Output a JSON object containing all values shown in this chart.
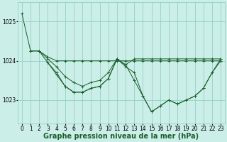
{
  "background_color": "#cceee8",
  "plot_bg_color": "#cceee8",
  "grid_color": "#88ccbb",
  "line_color": "#1a5e2a",
  "marker_color": "#1a5e2a",
  "xlabel": "Graphe pression niveau de la mer (hPa)",
  "xlabel_fontsize": 7,
  "ylim": [
    1022.4,
    1025.5
  ],
  "xlim": [
    -0.5,
    23.5
  ],
  "yticks": [
    1023,
    1024,
    1025
  ],
  "xticks": [
    0,
    1,
    2,
    3,
    4,
    5,
    6,
    7,
    8,
    9,
    10,
    11,
    12,
    13,
    14,
    15,
    16,
    17,
    18,
    19,
    20,
    21,
    22,
    23
  ],
  "tick_fontsize": 5.5,
  "series": [
    {
      "x": [
        0,
        1,
        2,
        3,
        4,
        5,
        6,
        7,
        8,
        9,
        10,
        11,
        12,
        13,
        14,
        15,
        16,
        17,
        18,
        19,
        20,
        21,
        22,
        23
      ],
      "y": [
        1025.2,
        1024.25,
        1024.25,
        1024.05,
        1023.85,
        1023.6,
        1023.45,
        1023.35,
        1023.45,
        1023.5,
        1023.7,
        1024.05,
        1023.85,
        1023.7,
        1023.1,
        1022.7,
        1022.85,
        1023.0,
        1022.9,
        1023.0,
        1023.1,
        1023.3,
        1023.7,
        1024.0
      ]
    },
    {
      "x": [
        1,
        2,
        3,
        4,
        5,
        6,
        7,
        8,
        9,
        10,
        11,
        12,
        13,
        14,
        15,
        16,
        17,
        18,
        19,
        20,
        21,
        22,
        23
      ],
      "y": [
        1024.25,
        1024.25,
        1024.1,
        1024.0,
        1024.0,
        1024.0,
        1024.0,
        1024.0,
        1024.0,
        1024.0,
        1024.0,
        1024.0,
        1024.0,
        1024.0,
        1024.0,
        1024.0,
        1024.0,
        1024.0,
        1024.0,
        1024.0,
        1024.0,
        1024.0,
        1024.0
      ]
    },
    {
      "x": [
        2,
        3,
        4,
        5,
        6,
        7,
        8,
        9,
        10,
        11,
        12,
        13,
        14,
        15,
        16,
        17,
        18,
        19,
        20,
        21,
        22,
        23
      ],
      "y": [
        1024.25,
        1023.95,
        1023.7,
        1023.35,
        1023.2,
        1023.2,
        1023.3,
        1023.35,
        1023.55,
        1024.05,
        1023.9,
        1024.05,
        1024.05,
        1024.05,
        1024.05,
        1024.05,
        1024.05,
        1024.05,
        1024.05,
        1024.05,
        1024.05,
        1024.05
      ]
    },
    {
      "x": [
        3,
        4,
        5,
        6,
        7,
        8,
        9,
        10,
        11,
        12,
        13,
        14,
        15,
        16,
        17,
        18,
        19,
        20,
        21,
        22,
        23
      ],
      "y": [
        1023.95,
        1023.65,
        1023.35,
        1023.2,
        1023.2,
        1023.3,
        1023.35,
        1023.55,
        1024.05,
        1023.9,
        1023.5,
        1023.1,
        1022.7,
        1022.85,
        1023.0,
        1022.9,
        1023.0,
        1023.1,
        1023.3,
        1023.7,
        1024.05
      ]
    }
  ]
}
